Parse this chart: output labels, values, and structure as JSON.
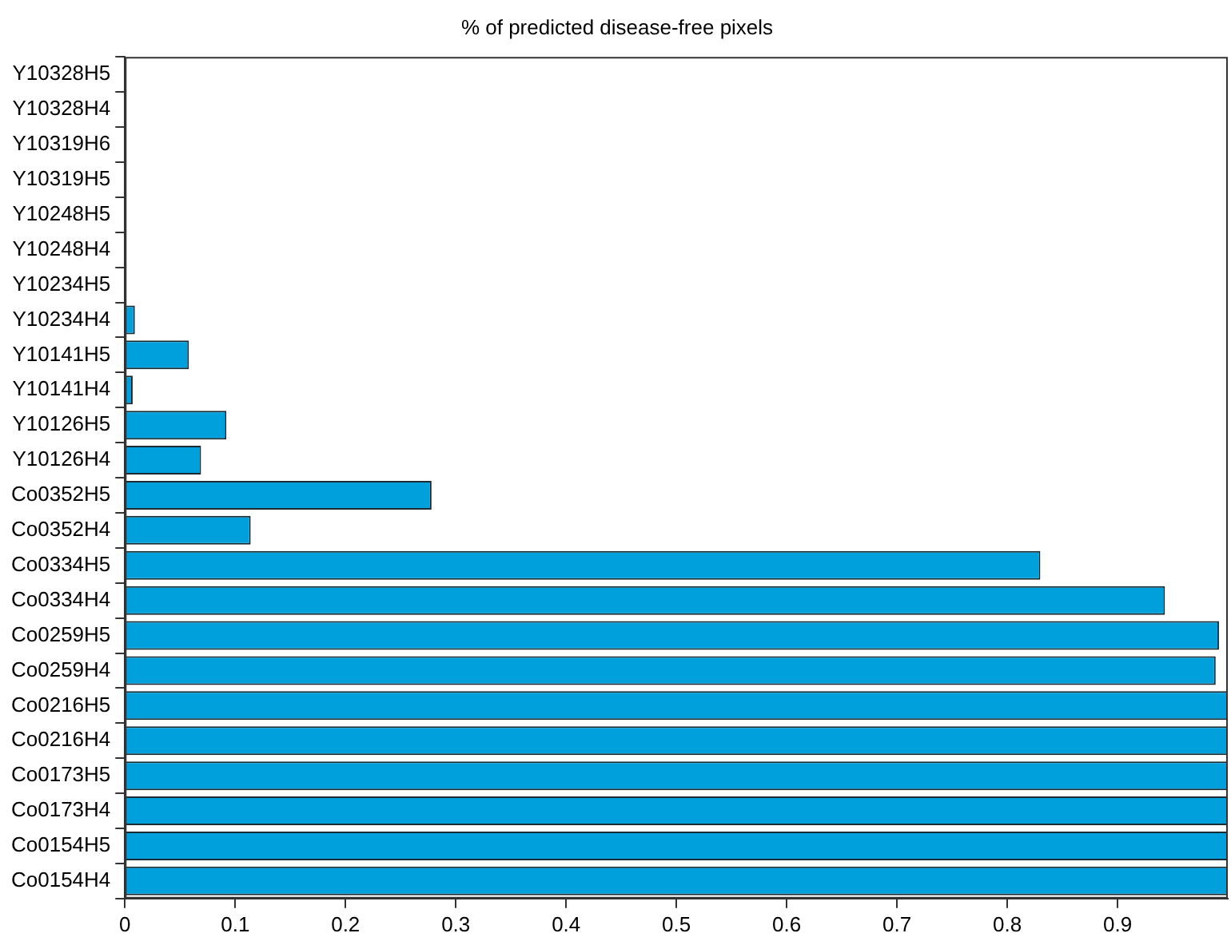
{
  "chart_data": {
    "type": "bar",
    "orientation": "horizontal",
    "title": "% of predicted disease-free pixels",
    "categories": [
      "Y10328H5",
      "Y10328H4",
      "Y10319H6",
      "Y10319H5",
      "Y10248H5",
      "Y10248H4",
      "Y10234H5",
      "Y10234H4",
      "Y10141H5",
      "Y10141H4",
      "Y10126H5",
      "Y10126H4",
      "Co0352H5",
      "Co0352H4",
      "Co0334H5",
      "Co0334H4",
      "Co0259H5",
      "Co0259H4",
      "Co0216H5",
      "Co0216H4",
      "Co0173H5",
      "Co0173H4",
      "Co0154H5",
      "Co0154H4"
    ],
    "values": [
      0,
      0,
      0,
      0,
      0,
      0,
      0,
      0.009,
      0.058,
      0.007,
      0.092,
      0.069,
      0.278,
      0.114,
      0.83,
      0.943,
      0.992,
      0.989,
      1,
      1,
      1,
      1,
      1,
      1
    ],
    "color": "#00a0dc",
    "xlim": [
      0,
      1
    ],
    "xticks": [
      0,
      0.1,
      0.2,
      0.3,
      0.4,
      0.5,
      0.6,
      0.7,
      0.8,
      0.9
    ],
    "grid": false,
    "legend": false
  }
}
